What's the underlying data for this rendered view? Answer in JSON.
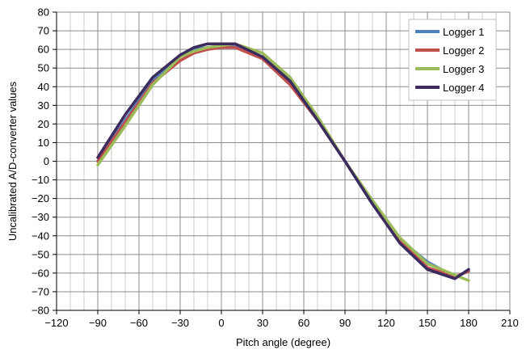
{
  "chart_data": {
    "type": "line",
    "title": "",
    "xlabel": "Pitch angle (degree)",
    "ylabel": "Uncalibrated A/D-converter values",
    "xlim": [
      -120,
      210
    ],
    "ylim": [
      -80,
      80
    ],
    "xticks": [
      -120,
      -90,
      -60,
      -30,
      0,
      30,
      60,
      90,
      120,
      150,
      180,
      210
    ],
    "yticks": [
      -80,
      -70,
      -60,
      -50,
      -40,
      -30,
      -20,
      -10,
      0,
      10,
      20,
      30,
      40,
      50,
      60,
      70,
      80
    ],
    "grid": true,
    "legend_position": "top-right",
    "x": [
      -90,
      -70,
      -50,
      -30,
      -20,
      -10,
      0,
      10,
      30,
      50,
      70,
      90,
      110,
      130,
      150,
      170,
      180
    ],
    "series": [
      {
        "name": "Logger 1",
        "color": "#4f81bd",
        "values": [
          0,
          22,
          43,
          56,
          60,
          61,
          62,
          62,
          56,
          43,
          22,
          0,
          -23,
          -42,
          -54,
          -62,
          -59
        ]
      },
      {
        "name": "Logger 2",
        "color": "#c0504d",
        "values": [
          0,
          21,
          42,
          54,
          58,
          60,
          61,
          61,
          55,
          41,
          22,
          0,
          -22,
          -42,
          -57,
          -62,
          -59
        ]
      },
      {
        "name": "Logger 3",
        "color": "#9bbb59",
        "values": [
          -2,
          19,
          41,
          56,
          59,
          61,
          62,
          63,
          58,
          45,
          24,
          0,
          -21,
          -41,
          -55,
          -61,
          -64
        ]
      },
      {
        "name": "Logger 4",
        "color": "#3b2b5e",
        "values": [
          2,
          25,
          45,
          57,
          61,
          63,
          63,
          63,
          56,
          43,
          22,
          0,
          -23,
          -44,
          -58,
          -63,
          -58
        ]
      }
    ]
  }
}
